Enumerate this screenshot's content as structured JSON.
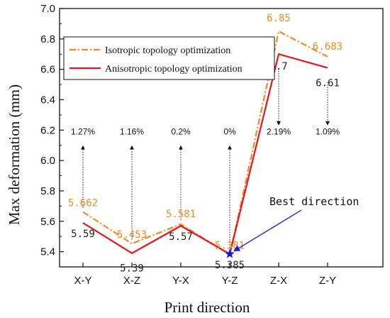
{
  "chart_data": {
    "type": "line",
    "xlabel": "Print direction",
    "ylabel": "Max deformation (mm)",
    "categories": [
      "X-Y",
      "X-Z",
      "Y-X",
      "Y-Z",
      "Z-X",
      "Z-Y"
    ],
    "ylim": [
      5.3,
      7.0
    ],
    "yticks": [
      "5.4",
      "5.6",
      "5.8",
      "6.0",
      "6.2",
      "6.4",
      "6.6",
      "6.8",
      "7.0"
    ],
    "grid": false,
    "legend_position": "top-left",
    "series": [
      {
        "name": "Isotropic topology optimization",
        "color": "#F08A24",
        "style": "dash-dot",
        "values": [
          5.662,
          5.453,
          5.581,
          5.381,
          6.85,
          6.683
        ],
        "labels": [
          "5.662",
          "5.453",
          "5.581",
          "5.381",
          "6.85",
          "6.683"
        ]
      },
      {
        "name": "Anisotropic topology optimization",
        "color": "#E8141B",
        "style": "solid",
        "values": [
          5.59,
          5.39,
          5.57,
          5.385,
          6.7,
          6.61
        ],
        "labels": [
          "5.59",
          "5.39",
          "5.57",
          "5.385",
          "6.7",
          "6.61"
        ]
      }
    ],
    "improvements": [
      "1.27%",
      "1.16%",
      "0.2%",
      "0%",
      "2.19%",
      "1.09%"
    ],
    "improvement_label_y": 6.17,
    "annotation": {
      "text": "Best direction",
      "category": "Y-Z",
      "value": 5.385,
      "marker": "star",
      "marker_color": "#1515E6"
    }
  }
}
